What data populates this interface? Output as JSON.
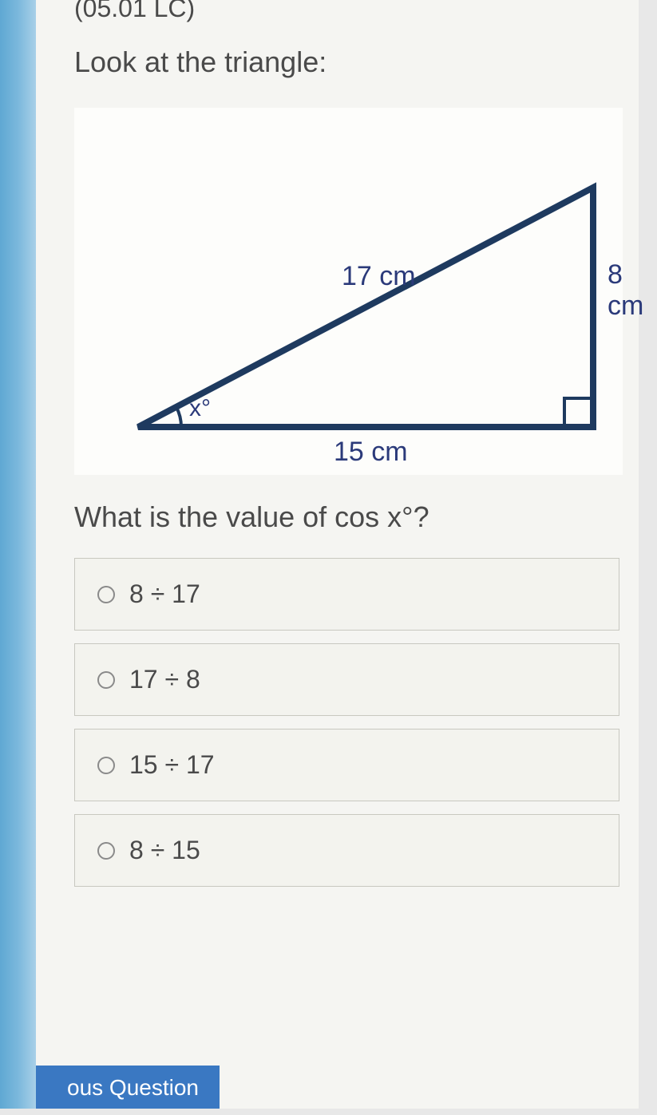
{
  "question": {
    "code": "(05.01 LC)",
    "instruction1": "Look at the triangle:",
    "instruction2": "What is the value of cos x°?"
  },
  "triangle": {
    "hypotenuse_label": "17 cm",
    "opposite_label": "8 cm",
    "adjacent_label": "15 cm",
    "angle_label": "x°",
    "stroke_color": "#1e3a5f",
    "label_color": "#2b3a7a",
    "stroke_width": 8,
    "right_angle_size": 36,
    "angle_arc_radius": 54,
    "vertices": {
      "A": [
        50,
        380
      ],
      "B": [
        620,
        380
      ],
      "C": [
        620,
        80
      ]
    }
  },
  "options": [
    {
      "label": "8 ÷ 17"
    },
    {
      "label": "17 ÷ 8"
    },
    {
      "label": "15 ÷ 17"
    },
    {
      "label": "8 ÷ 15"
    }
  ],
  "nav": {
    "previous_label": "ous Question"
  },
  "colors": {
    "left_bar_start": "#5fa8d3",
    "content_bg": "#f5f5f2",
    "option_bg": "#f3f3ee",
    "option_border": "#c8c8c0",
    "text": "#4a4a4a",
    "button_bg": "#3a78c2"
  }
}
